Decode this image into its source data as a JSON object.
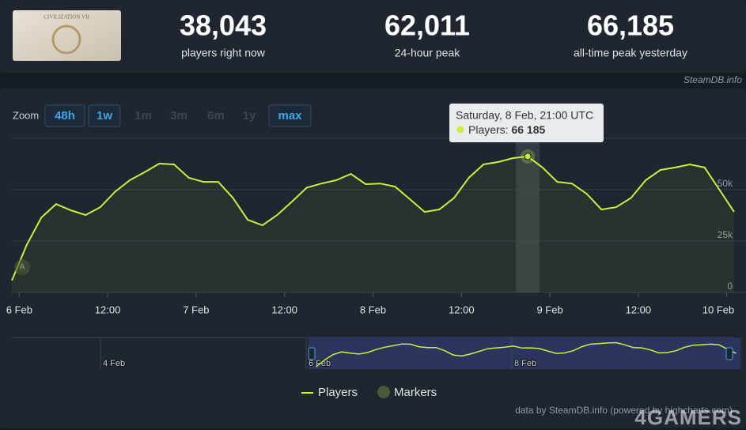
{
  "header": {
    "game_title": "CIVILIZATION VII",
    "stats": [
      {
        "value": "38,043",
        "label": "players right now"
      },
      {
        "value": "62,011",
        "label": "24-hour peak"
      },
      {
        "value": "66,185",
        "label": "all-time peak yesterday"
      }
    ],
    "source": "SteamDB.info"
  },
  "zoom": {
    "label": "Zoom",
    "buttons": [
      {
        "text": "48h",
        "active": true
      },
      {
        "text": "1w",
        "active": true
      },
      {
        "text": "1m",
        "active": false
      },
      {
        "text": "3m",
        "active": false
      },
      {
        "text": "6m",
        "active": false
      },
      {
        "text": "1y",
        "active": false
      },
      {
        "text": "max",
        "active": true
      }
    ]
  },
  "chart_data": {
    "type": "line",
    "x": [
      "5 Feb 23:00",
      "6 Feb 01:00",
      "6 Feb 03:00",
      "6 Feb 05:00",
      "6 Feb 07:00",
      "6 Feb 09:00",
      "6 Feb 11:00",
      "6 Feb 13:00",
      "6 Feb 15:00",
      "6 Feb 17:00",
      "6 Feb 19:00",
      "6 Feb 21:00",
      "6 Feb 23:00",
      "7 Feb 01:00",
      "7 Feb 03:00",
      "7 Feb 05:00",
      "7 Feb 07:00",
      "7 Feb 09:00",
      "7 Feb 11:00",
      "7 Feb 13:00",
      "7 Feb 15:00",
      "7 Feb 17:00",
      "7 Feb 19:00",
      "7 Feb 21:00",
      "7 Feb 23:00",
      "8 Feb 01:00",
      "8 Feb 03:00",
      "8 Feb 05:00",
      "8 Feb 07:00",
      "8 Feb 09:00",
      "8 Feb 11:00",
      "8 Feb 13:00",
      "8 Feb 15:00",
      "8 Feb 17:00",
      "8 Feb 19:00",
      "8 Feb 21:00",
      "8 Feb 23:00",
      "9 Feb 01:00",
      "9 Feb 03:00",
      "9 Feb 05:00",
      "9 Feb 07:00",
      "9 Feb 09:00",
      "9 Feb 11:00",
      "9 Feb 13:00",
      "9 Feb 15:00",
      "9 Feb 17:00",
      "9 Feb 19:00",
      "9 Feb 21:00",
      "9 Feb 23:00",
      "10 Feb 01:00"
    ],
    "series": [
      {
        "name": "Players",
        "color": "#cbef3c",
        "values": [
          5800,
          23000,
          36500,
          43000,
          40000,
          37700,
          41500,
          49000,
          54600,
          58500,
          62700,
          62300,
          55800,
          53800,
          53800,
          46000,
          35400,
          32700,
          37700,
          44200,
          51000,
          53000,
          54600,
          57700,
          52700,
          53000,
          51500,
          45400,
          39200,
          40400,
          46000,
          55800,
          62300,
          63500,
          65400,
          66185,
          60800,
          53800,
          53000,
          48000,
          40400,
          41500,
          46000,
          54600,
          59600,
          60800,
          62300,
          60800,
          50000,
          39200
        ]
      }
    ],
    "markers": {
      "name": "Markers",
      "color": "#4b5a34",
      "label": "A"
    },
    "xlim": [
      "5 Feb 23:00",
      "10 Feb 01:00"
    ],
    "xticks": [
      {
        "value": "6 Feb 00:00",
        "label": "6 Feb"
      },
      {
        "value": "6 Feb 12:00",
        "label": "12:00"
      },
      {
        "value": "7 Feb 00:00",
        "label": "7 Feb"
      },
      {
        "value": "7 Feb 12:00",
        "label": "12:00"
      },
      {
        "value": "8 Feb 00:00",
        "label": "8 Feb"
      },
      {
        "value": "8 Feb 12:00",
        "label": "12:00"
      },
      {
        "value": "9 Feb 00:00",
        "label": "9 Feb"
      },
      {
        "value": "9 Feb 12:00",
        "label": "12:00"
      },
      {
        "value": "10 Feb 00:00",
        "label": "10 Feb"
      }
    ],
    "ylim": [
      0,
      75000
    ],
    "yticks": [
      0,
      {
        "value": 25000,
        "label": "25k"
      },
      {
        "value": 50000,
        "label": "50k"
      }
    ],
    "grid": true,
    "tooltip": {
      "title": "Saturday, 8 Feb, 21:00 UTC",
      "label": "Players:",
      "value": 66185,
      "value_label": "66 185"
    },
    "navigator": {
      "labels": [
        "4 Feb",
        "6 Feb",
        "8 Feb"
      ]
    },
    "credits": "data by SteamDB.info (powered by highcharts.com)"
  },
  "watermark": "4GAMERS"
}
